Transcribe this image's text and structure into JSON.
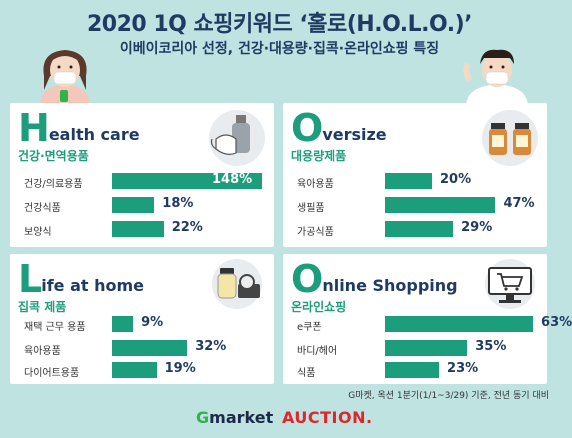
{
  "header": {
    "title": "2020 1Q 쇼핑키워드 ‘홀로(H.O.L.O.)’",
    "subtitle": "이베이코리아 선정, 건강·대용량·집콕·온라인쇼핑 특징"
  },
  "colors": {
    "accent": "#1c9d7c",
    "navy": "#1f3b63",
    "background": "#bfe3e0"
  },
  "panels": [
    {
      "letter": "H",
      "rest": "ealth care",
      "sub": "건강·면역용품",
      "icon": "mask-and-sanitizer-icon"
    },
    {
      "letter": "O",
      "rest": "versize",
      "sub": "대용량제품",
      "icon": "large-jars-icon"
    },
    {
      "letter": "L",
      "rest": "ife at home",
      "sub": "집콕 제품",
      "icon": "jar-and-tape-icon"
    },
    {
      "letter": "O",
      "rest": "nline Shopping",
      "sub": "온라인쇼핑",
      "icon": "shopping-cart-monitor-icon"
    }
  ],
  "chart_data": [
    {
      "type": "bar",
      "categories": [
        "건강/의료용품",
        "건강식품",
        "보양식"
      ],
      "values": [
        148,
        18,
        22
      ],
      "value_labels": [
        "148%",
        "18%",
        "22%"
      ]
    },
    {
      "type": "bar",
      "categories": [
        "육아용품",
        "생필품",
        "가공식품"
      ],
      "values": [
        20,
        47,
        29
      ],
      "value_labels": [
        "20%",
        "47%",
        "29%"
      ]
    },
    {
      "type": "bar",
      "categories": [
        "재택 근무 용품",
        "육아용품",
        "다이어트용품"
      ],
      "values": [
        9,
        32,
        19
      ],
      "value_labels": [
        "9%",
        "32%",
        "19%"
      ]
    },
    {
      "type": "bar",
      "categories": [
        "e쿠폰",
        "바디/헤어",
        "식품"
      ],
      "values": [
        63,
        35,
        23
      ],
      "value_labels": [
        "63%",
        "35%",
        "23%"
      ]
    }
  ],
  "footer": {
    "note": "G마켓, 옥션 1분기(1/1~3/29) 기준, 전년 동기 대비",
    "logo_g_first": "G",
    "logo_g_rest": "market",
    "logo_auction": "AUCTION."
  }
}
